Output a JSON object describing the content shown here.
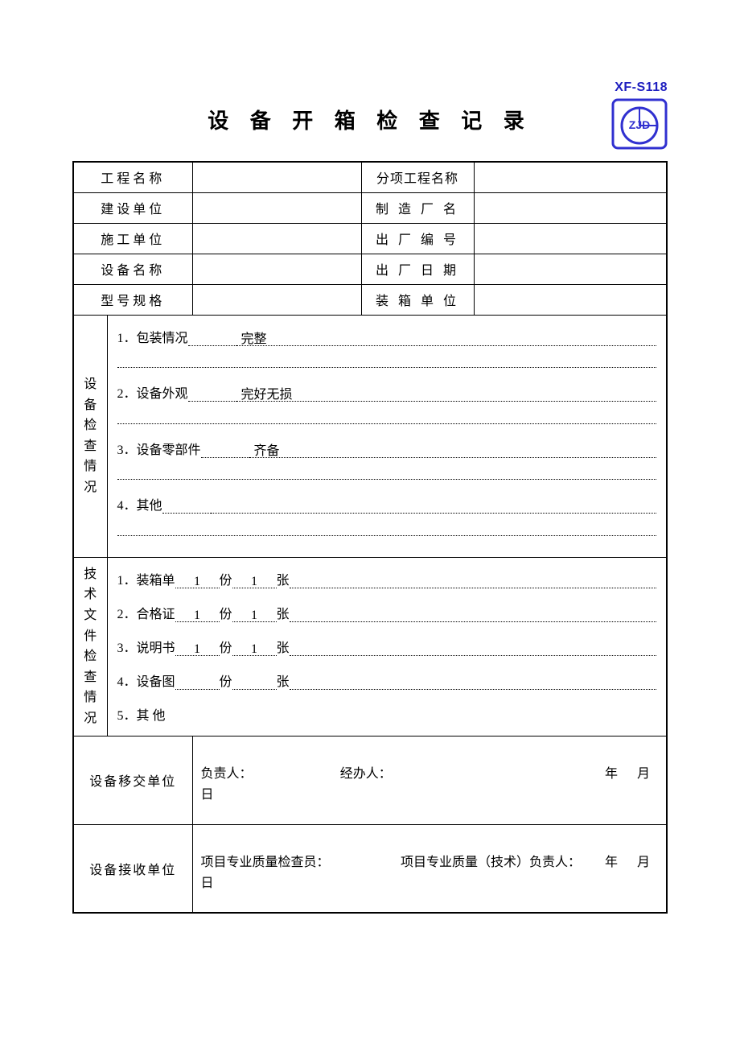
{
  "form_code": "XF-S118",
  "logo": {
    "text": "ZJD",
    "stroke": "#3030d0"
  },
  "title": "设 备 开 箱 检 查 记 录",
  "header_rows": [
    {
      "left": "工程名称",
      "right": "分项工程名称",
      "right_tight": true
    },
    {
      "left": "建设单位",
      "right": "制 造 厂 名"
    },
    {
      "left": "施工单位",
      "right": "出 厂 编 号"
    },
    {
      "left": "设备名称",
      "right": "出 厂 日 期"
    },
    {
      "left": "型号规格",
      "right": "装 箱 单 位"
    }
  ],
  "equip_check": {
    "vtitle": "设备检查情况",
    "items": [
      {
        "num": "1．",
        "label": "包装情况",
        "value": "完整"
      },
      {
        "num": "2．",
        "label": "设备外观",
        "value": "完好无损"
      },
      {
        "num": "3．",
        "label": "设备零部件",
        "value": "齐备"
      },
      {
        "num": "4．",
        "label": "其他",
        "value": ""
      }
    ]
  },
  "doc_check": {
    "vtitle": "技术文件检查情况",
    "unit_copy": "份",
    "unit_sheet": "张",
    "items": [
      {
        "num": "1．",
        "label": "装箱单",
        "copies": "1",
        "sheets": "1"
      },
      {
        "num": "2．",
        "label": "合格证",
        "copies": "1",
        "sheets": "1"
      },
      {
        "num": "3．",
        "label": "说明书",
        "copies": "1",
        "sheets": "1"
      },
      {
        "num": "4．",
        "label": "设备图",
        "copies": "",
        "sheets": ""
      }
    ],
    "other": {
      "num": "5．",
      "label": "其  他"
    }
  },
  "signatures": {
    "handover": {
      "label": "设备移交单位",
      "role1": "负责人：",
      "role2": "经办人：",
      "date_ym": "年   月",
      "date_d": "日"
    },
    "receive": {
      "label": "设备接收单位",
      "role1": "项目专业质量检查员：",
      "role2": "项目专业质量（技术）负责人：",
      "date_ym": "年   月",
      "date_d": "日"
    }
  }
}
